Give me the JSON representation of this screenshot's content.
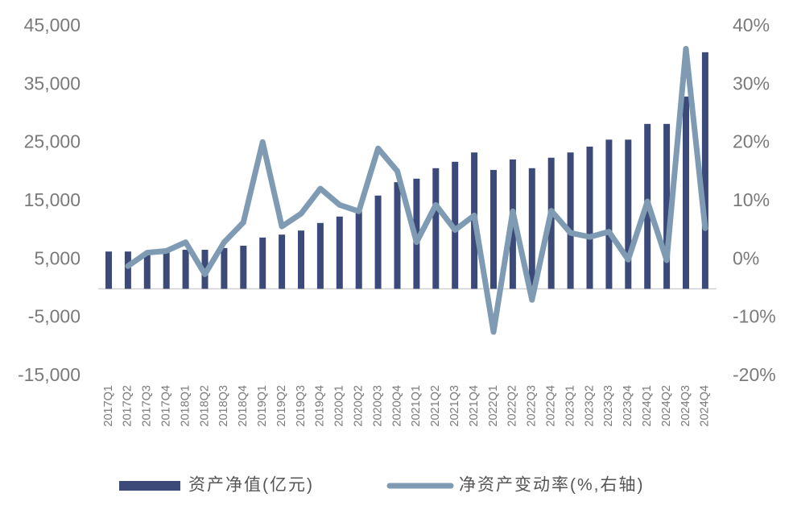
{
  "chart_data": {
    "type": "bar-line",
    "categories": [
      "2017Q1",
      "2017Q2",
      "2017Q3",
      "2017Q4",
      "2018Q1",
      "2018Q2",
      "2018Q3",
      "2018Q4",
      "2019Q1",
      "2019Q2",
      "2019Q3",
      "2019Q4",
      "2020Q1",
      "2020Q2",
      "2020Q3",
      "2020Q4",
      "2021Q1",
      "2021Q2",
      "2021Q3",
      "2021Q4",
      "2022Q1",
      "2022Q2",
      "2022Q3",
      "2022Q4",
      "2023Q1",
      "2023Q2",
      "2023Q3",
      "2023Q4",
      "2024Q1",
      "2024Q2",
      "2024Q3",
      "2024Q4"
    ],
    "series": [
      {
        "name": "资产净值(亿元)",
        "color": "#3b4a78",
        "type": "bar",
        "values": [
          6400,
          6400,
          6200,
          6400,
          6700,
          6700,
          7000,
          7400,
          8800,
          9300,
          10000,
          11300,
          12400,
          13300,
          16000,
          18300,
          18900,
          20700,
          21800,
          23400,
          20400,
          22200,
          20700,
          22500,
          23400,
          24400,
          25600,
          25600,
          28300,
          28300,
          33000,
          40600
        ]
      },
      {
        "name": "净资产变动率(%,右轴)",
        "color": "#7f9bb4",
        "type": "line",
        "axis": "y2",
        "values": [
          null,
          -1.1,
          1.2,
          1.5,
          3.0,
          -2.5,
          3.0,
          6.4,
          20.2,
          5.7,
          7.9,
          12.2,
          9.4,
          8.3,
          19.1,
          15.2,
          3.0,
          9.4,
          5.1,
          7.6,
          -12.4,
          8.3,
          -6.9,
          8.4,
          4.6,
          3.9,
          4.8,
          0,
          10.0,
          -0.1,
          36.2,
          5.4
        ]
      }
    ],
    "ylim": [
      -15000,
      45000
    ],
    "yticks": [
      {
        "value": -15000,
        "label": "-15,000"
      },
      {
        "value": -5000,
        "label": "-5,000"
      },
      {
        "value": 5000,
        "label": "5,000"
      },
      {
        "value": 15000,
        "label": "15,000"
      },
      {
        "value": 25000,
        "label": "25,000"
      },
      {
        "value": 35000,
        "label": "35,000"
      },
      {
        "value": 45000,
        "label": "45,000"
      }
    ],
    "y2lim": [
      -20,
      40
    ],
    "y2ticks": [
      {
        "value": -20,
        "label": "-20%"
      },
      {
        "value": -10,
        "label": "-10%"
      },
      {
        "value": 0,
        "label": "0%"
      },
      {
        "value": 10,
        "label": "10%"
      },
      {
        "value": 20,
        "label": "20%"
      },
      {
        "value": 30,
        "label": "30%"
      },
      {
        "value": 40,
        "label": "40%"
      }
    ],
    "legend": "bottom"
  }
}
